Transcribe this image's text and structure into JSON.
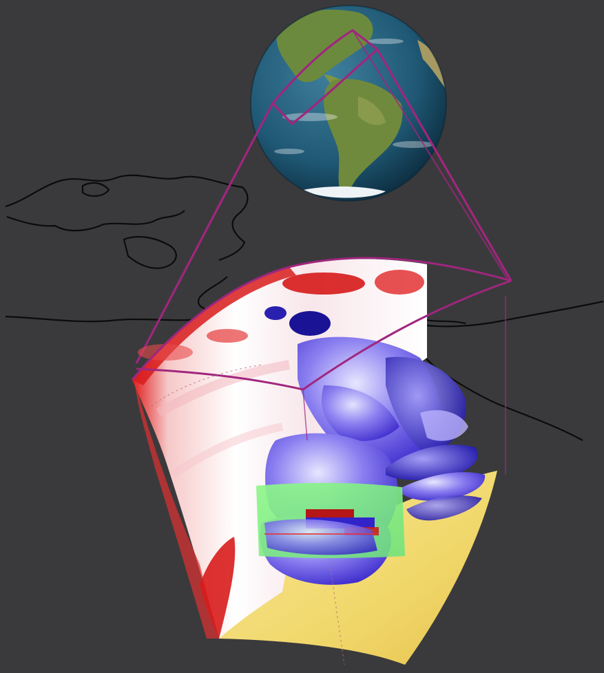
{
  "scene": {
    "background_color": "#3a3a3c",
    "frame_color": "#a0267e",
    "coastline_color": "#0b0b0b",
    "globe_ocean_color": "#1e5b7a",
    "globe_land_color": "#6f8a3d",
    "slab_warm_color": "#d81c1c",
    "slab_cold_color": "#2a1fc4",
    "base_surface_color": "#f3dc7e",
    "slice_color": "#7df07a"
  }
}
